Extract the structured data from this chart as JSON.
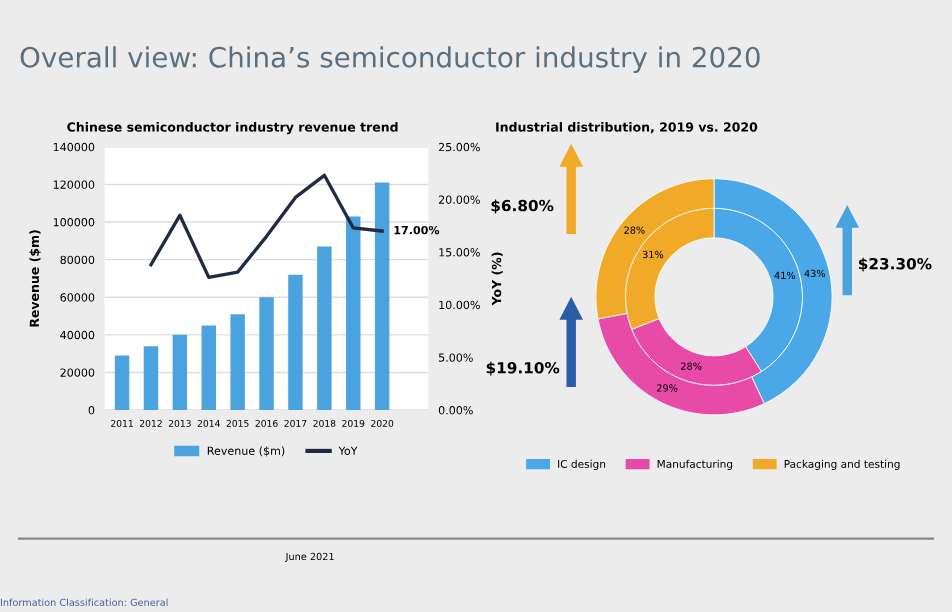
{
  "chart_data": [
    {
      "type": "bar",
      "title": "Overall view: China’s semiconductor industry in 2020",
      "subtitle": "Chinese semiconductor industry revenue trend",
      "ylabel": "Revenue ($m)",
      "y2label": "YoY (%)",
      "categories": [
        "2011",
        "2012",
        "2013",
        "2014",
        "2015",
        "2016",
        "2017",
        "2018",
        "2019",
        "2020"
      ],
      "series": [
        {
          "name": "Revenue ($m)",
          "type": "bar",
          "color": "#4aa3df",
          "values": [
            29000,
            34000,
            40000,
            45000,
            51000,
            60000,
            72000,
            87000,
            103000,
            121000
          ]
        },
        {
          "name": "YoY",
          "type": "line",
          "axis": "y2",
          "color": "#1f2a44",
          "values": [
            null,
            13.8,
            18.5,
            12.6,
            13.1,
            16.5,
            20.2,
            22.3,
            17.3,
            17.0
          ],
          "value_labels": [
            null,
            null,
            null,
            null,
            null,
            null,
            null,
            null,
            null,
            "17.00%"
          ]
        }
      ],
      "ylim": [
        0,
        140000
      ],
      "yticks": [
        0,
        20000,
        40000,
        60000,
        80000,
        100000,
        120000,
        140000
      ],
      "y2lim": [
        0,
        25
      ],
      "y2ticks": [
        {
          "value": 0,
          "label": "0.00%"
        },
        {
          "value": 5,
          "label": "5.00%"
        },
        {
          "value": 10,
          "label": "10.00%"
        },
        {
          "value": 15,
          "label": "15.00%"
        },
        {
          "value": 20,
          "label": "20.00%"
        },
        {
          "value": 25,
          "label": "25.00%"
        }
      ],
      "grid": "y",
      "legend": "bottom"
    },
    {
      "type": "donut",
      "title": "Industrial distribution, 2019 vs. 2020",
      "categories": [
        "IC design",
        "Manufacturing",
        "Packaging and testing"
      ],
      "colors": [
        "#4aa8e8",
        "#e84aa8",
        "#f0aa28"
      ],
      "series": [
        {
          "values": [
            41,
            28,
            31
          ],
          "value_labels": [
            "41%",
            "28%",
            "31%"
          ]
        },
        {
          "values": [
            43,
            29,
            28
          ],
          "value_labels": [
            "43%",
            "29%",
            "28%"
          ]
        }
      ],
      "legend": "bottom",
      "annotations": [
        "$23.30%",
        "$19.10%",
        "$6.80%",
        "June 2021",
        "Information Classification: General"
      ]
    }
  ]
}
